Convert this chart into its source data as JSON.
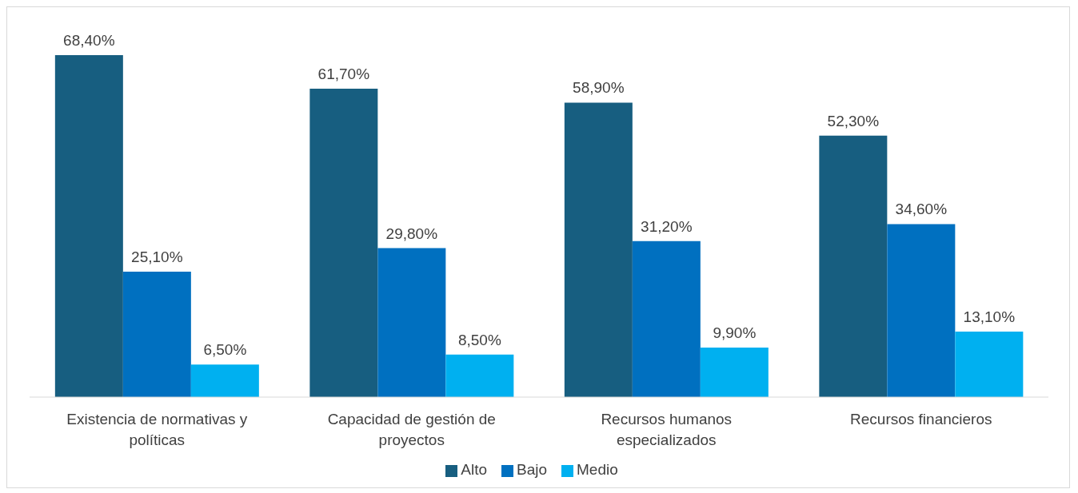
{
  "chart_data": {
    "type": "bar",
    "categories": [
      "Existencia de normativas y políticas",
      "Capacidad de gestión de proyectos",
      "Recursos humanos especializados",
      "Recursos financieros"
    ],
    "series": [
      {
        "name": "Alto",
        "color": "#175e80",
        "values": [
          68.4,
          61.7,
          58.9,
          52.3
        ],
        "value_labels": [
          "68,40%",
          "61,70%",
          "58,90%",
          "52,30%"
        ]
      },
      {
        "name": "Bajo",
        "color": "#0070c0",
        "values": [
          25.1,
          29.8,
          31.2,
          34.6
        ],
        "value_labels": [
          "25,10%",
          "29,80%",
          "31,20%",
          "34,60%"
        ]
      },
      {
        "name": "Medio",
        "color": "#00b0f0",
        "values": [
          6.5,
          8.5,
          9.9,
          13.1
        ],
        "value_labels": [
          "6,50%",
          "8,50%",
          "9,90%",
          "13,10%"
        ]
      }
    ],
    "legend": "bottom",
    "grid": false
  }
}
